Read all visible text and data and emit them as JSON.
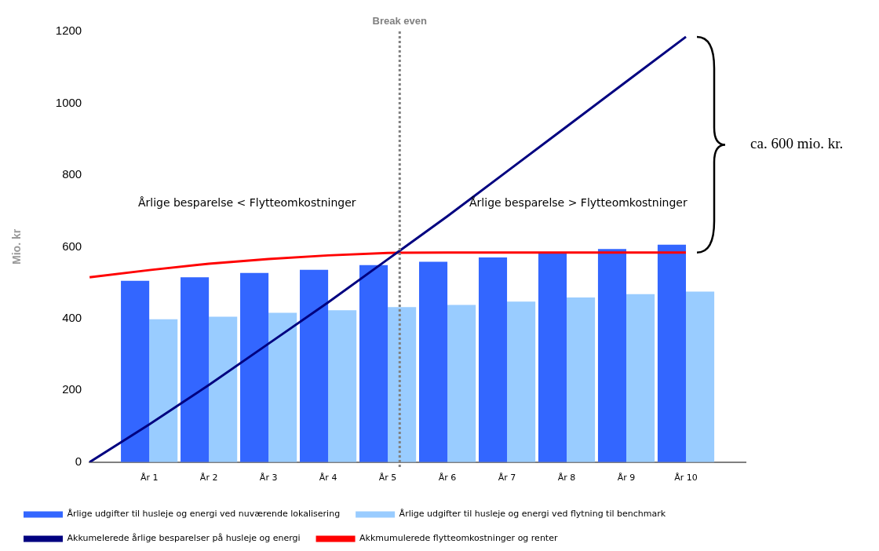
{
  "chart_data": {
    "type": "bar",
    "ylabel": "Mio. kr",
    "categories": [
      null,
      "År 1",
      "År 2",
      "År 3",
      "År 4",
      "År 5",
      "År 6",
      "År 7",
      "År 8",
      "År 9",
      "År 10",
      null
    ],
    "series": [
      {
        "name": "Årlige udgifter til husleje og energi ved nuværende lokalisering",
        "color": "#3366ff",
        "values": [
          null,
          505,
          515,
          527,
          536,
          549,
          558,
          570,
          583,
          594,
          606,
          null
        ]
      },
      {
        "name": "Årlige udgifter til husleje og energi ved flytning til benchmark",
        "color": "#99ccff",
        "values": [
          null,
          398,
          405,
          416,
          423,
          432,
          438,
          447,
          459,
          468,
          475,
          null
        ]
      },
      {
        "name": "Akkumelerede årlige besparelser på husleje og energi",
        "type": "line",
        "color": "#000080",
        "values": [
          0,
          105,
          215,
          330,
          445,
          565,
          685,
          810,
          935,
          1060,
          1185,
          null
        ]
      },
      {
        "name": "Akkmumulerede flytteomkostninger og renter",
        "type": "line",
        "color": "#ff0000",
        "values": [
          515,
          535,
          553,
          566,
          576,
          583,
          584,
          584,
          584,
          584,
          584,
          null
        ]
      }
    ],
    "ylim": [
      0,
      1200
    ],
    "yticks": [
      0,
      200,
      400,
      600,
      800,
      1000,
      1200
    ],
    "grid": false,
    "legend": "bottom",
    "marker": "none",
    "ref_lines": [
      {
        "axis": "x",
        "value": "År 5",
        "label": "Break even",
        "color": "#808080",
        "line_style": "dotted"
      }
    ],
    "annotations": [
      "Årlige besparelse < Flytteomkostninger",
      "Årlige besparelse > Flytteomkostninger",
      "ca. 600 mio. kr."
    ]
  }
}
